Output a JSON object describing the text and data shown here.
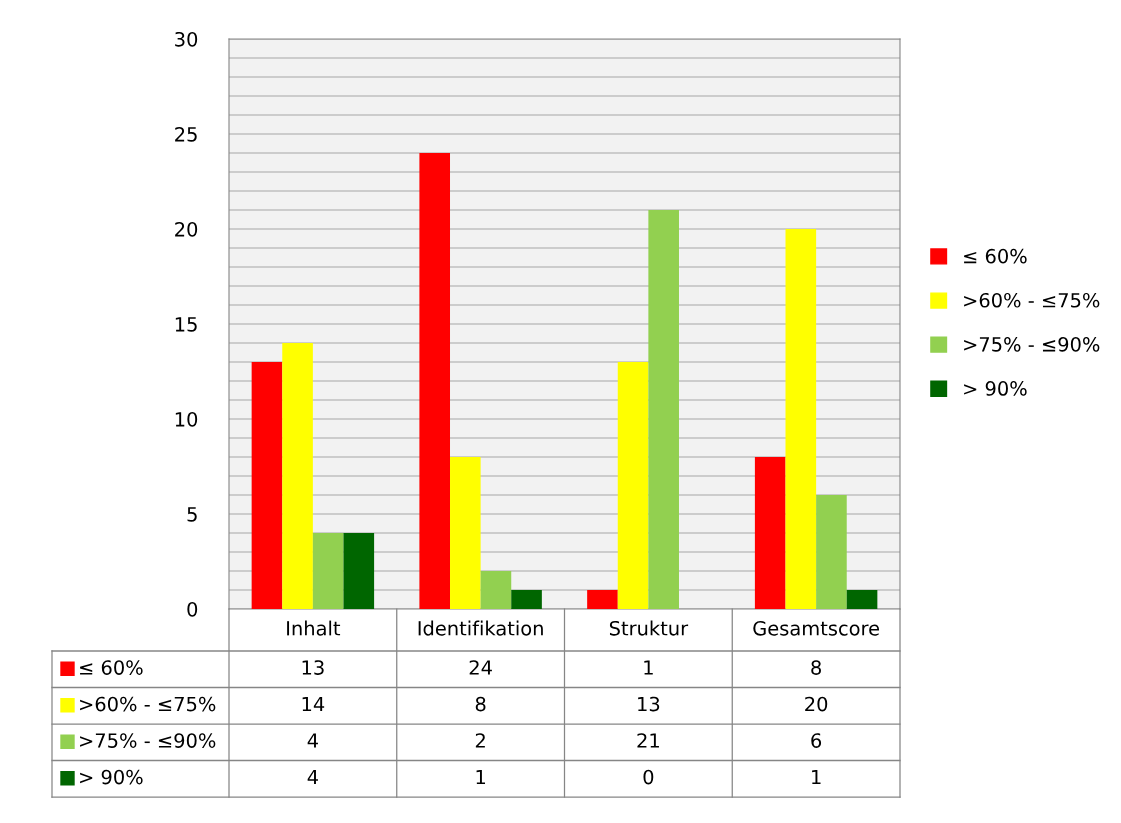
{
  "chart_data": {
    "type": "bar",
    "categories": [
      "Inhalt",
      "Identifikation",
      "Struktur",
      "Gesamtscore"
    ],
    "series": [
      {
        "name": "≤ 60%",
        "color": "#ff0000",
        "values": [
          13,
          24,
          1,
          8
        ]
      },
      {
        "name": ">60% - ≤75%",
        "color": "#ffff00",
        "values": [
          14,
          8,
          13,
          20
        ]
      },
      {
        "name": ">75% - ≤90%",
        "color": "#92d050",
        "values": [
          4,
          2,
          21,
          6
        ]
      },
      {
        "name": "> 90%",
        "color": "#006600",
        "values": [
          4,
          1,
          0,
          1
        ]
      }
    ],
    "ylim": [
      0,
      30
    ],
    "yticks": [
      0,
      {
        "value": 1,
        "label": null
      },
      {
        "value": 2,
        "label": null
      },
      {
        "value": 3,
        "label": null
      },
      {
        "value": 4,
        "label": null
      },
      5,
      {
        "value": 6,
        "label": null
      },
      {
        "value": 7,
        "label": null
      },
      {
        "value": 8,
        "label": null
      },
      {
        "value": 9,
        "label": null
      },
      10,
      {
        "value": 11,
        "label": null
      },
      {
        "value": 12,
        "label": null
      },
      {
        "value": 13,
        "label": null
      },
      {
        "value": 14,
        "label": null
      },
      15,
      {
        "value": 16,
        "label": null
      },
      {
        "value": 17,
        "label": null
      },
      {
        "value": 18,
        "label": null
      },
      {
        "value": 19,
        "label": null
      },
      20,
      {
        "value": 21,
        "label": null
      },
      {
        "value": 22,
        "label": null
      },
      {
        "value": 23,
        "label": null
      },
      {
        "value": 24,
        "label": null
      },
      25,
      {
        "value": 26,
        "label": null
      },
      {
        "value": 27,
        "label": null
      },
      {
        "value": 28,
        "label": null
      },
      {
        "value": 29,
        "label": null
      },
      30
    ],
    "grid": "y",
    "legend": "right",
    "tick_labels": "y",
    "data_labels": true
  }
}
